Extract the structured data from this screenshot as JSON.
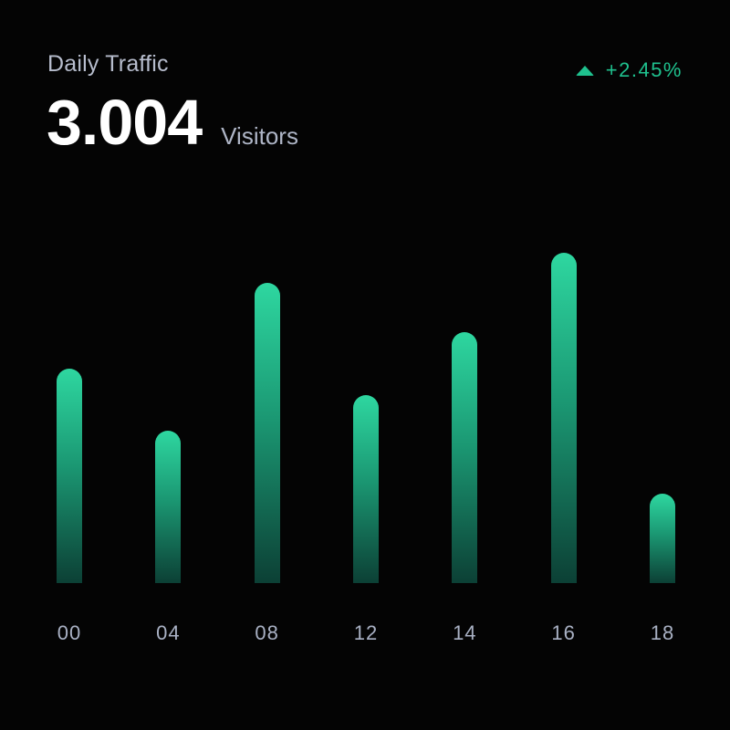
{
  "card": {
    "title": "Daily Traffic",
    "value": "3.004",
    "unit": "Visitors",
    "change": {
      "direction": "up",
      "icon": "triangle-up-icon",
      "label": "+2.45%"
    }
  },
  "colors": {
    "background": "#040404",
    "text_primary": "#ffffff",
    "text_muted": "#b3bac9",
    "accent_green": "#1fc18e",
    "bar_gradient_top": "#2ed7a0",
    "bar_gradient_bottom": "#0c4035"
  },
  "chart_data": {
    "type": "bar",
    "title": "Daily Traffic",
    "categories": [
      "00",
      "04",
      "08",
      "12",
      "14",
      "16",
      "18"
    ],
    "values": [
      65,
      46,
      91,
      57,
      76,
      100,
      27
    ],
    "value_unit": "percent_of_max_bar",
    "xlabel": "",
    "ylabel": "",
    "ylim": [
      0,
      100
    ],
    "grid": false,
    "legend": false,
    "bar_style": "rounded-top-gradient"
  }
}
